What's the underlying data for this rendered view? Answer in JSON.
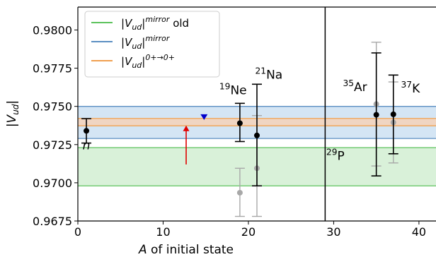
{
  "chart_data": {
    "type": "scatter",
    "xlabel": "A of initial state",
    "ylabel": "|V_ud|",
    "xlim": [
      0,
      42
    ],
    "ylim": [
      0.9675,
      0.9815
    ],
    "x_ticks": [
      0,
      10,
      20,
      30,
      40
    ],
    "y_ticks": [
      0.9675,
      0.97,
      0.9725,
      0.975,
      0.9775,
      0.98
    ],
    "x_tick_labels": [
      "0",
      "10",
      "20",
      "30",
      "40"
    ],
    "y_tick_labels": [
      "0.9675",
      "0.9700",
      "0.9725",
      "0.9750",
      "0.9775",
      "0.9800"
    ],
    "grid": false,
    "legend_position": "top-left",
    "legend": [
      {
        "label": "|V_ud|^mirror old",
        "color": "#5cc25c"
      },
      {
        "label": "|V_ud|^mirror",
        "color": "#5b8ec2"
      },
      {
        "label": "|V_ud|^(0+→0+)",
        "color": "#f0a050"
      }
    ],
    "bands": [
      {
        "name": "|V_ud|^mirror old",
        "center": 0.97105,
        "low": 0.9698,
        "high": 0.9723,
        "fill": "#d5efd5",
        "line": "#5cc25c"
      },
      {
        "name": "|V_ud|^mirror",
        "center": 0.97395,
        "low": 0.9729,
        "high": 0.975,
        "fill": "#cfe2f3",
        "line": "#5b8ec2"
      },
      {
        "name": "|V_ud|^(0+→0+)",
        "center": 0.97397,
        "low": 0.97373,
        "high": 0.97421,
        "fill": "#f3d3bd",
        "line": "#f0a050"
      }
    ],
    "divider_x": 29,
    "points_current": [
      {
        "label": "n",
        "x": 1,
        "y": 0.9734,
        "low": 0.9726,
        "high": 0.9742
      },
      {
        "label": "19Ne",
        "x": 19,
        "y": 0.9739,
        "low": 0.9727,
        "high": 0.9752
      },
      {
        "label": "21Na",
        "x": 21,
        "y": 0.9731,
        "low": 0.9698,
        "high": 0.97645
      },
      {
        "label": "35Ar",
        "x": 35,
        "y": 0.97445,
        "low": 0.97045,
        "high": 0.9785
      },
      {
        "label": "37K",
        "x": 37,
        "y": 0.97448,
        "low": 0.9719,
        "high": 0.97705
      }
    ],
    "points_old": [
      {
        "x": 19,
        "y": 0.96935,
        "low": 0.9678,
        "high": 0.97095
      },
      {
        "x": 21,
        "y": 0.97095,
        "low": 0.9678,
        "high": 0.9744
      },
      {
        "x": 35,
        "y": 0.97515,
        "low": 0.9711,
        "high": 0.9792
      },
      {
        "x": 37,
        "y": 0.97395,
        "low": 0.9713,
        "high": 0.9766
      }
    ],
    "annotations": [
      {
        "text": "n",
        "x": 1,
        "y": 0.9722
      },
      {
        "text": "19Ne",
        "x": 18.2,
        "y": 0.9758
      },
      {
        "text": "21Na",
        "x": 22.4,
        "y": 0.9768
      },
      {
        "text": "35Ar",
        "x": 32.5,
        "y": 0.976
      },
      {
        "text": "37K",
        "x": 39,
        "y": 0.9759
      },
      {
        "text": "29P",
        "x": 30.2,
        "y": 0.9715
      }
    ],
    "blue_marker": {
      "x": 14.8,
      "y": 0.9743,
      "color": "#0000cc"
    },
    "red_arrow": {
      "x": 12.7,
      "y_start": 0.9712,
      "y_end": 0.97375,
      "color": "#e00000"
    }
  }
}
